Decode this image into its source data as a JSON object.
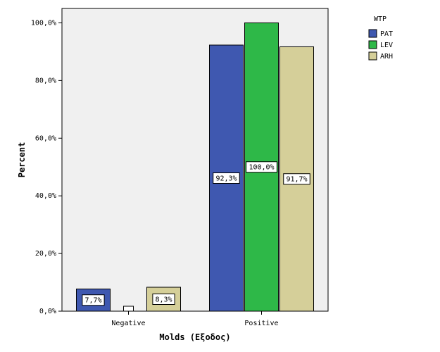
{
  "chart_data": {
    "type": "bar",
    "title": "",
    "xlabel": "Molds (Εξοδος)",
    "ylabel": "Percent",
    "categories": [
      "Negative",
      "Positive"
    ],
    "series": [
      {
        "name": "PAT",
        "values": [
          7.7,
          92.3
        ],
        "labels": [
          "7,7%",
          "92,3%"
        ],
        "color": "#3f58b0"
      },
      {
        "name": "LEV",
        "values": [
          0,
          100.0
        ],
        "labels": [
          "",
          "100,0%"
        ],
        "color": "#2eb848"
      },
      {
        "name": "ARH",
        "values": [
          8.3,
          91.7
        ],
        "labels": [
          "8,3%",
          "91,7%"
        ],
        "color": "#d5cf99"
      }
    ],
    "ylim": [
      0,
      105
    ],
    "yticks": [
      0,
      20,
      40,
      60,
      80,
      100
    ],
    "ytick_labels": [
      "0,0%",
      "20,0%",
      "40,0%",
      "60,0%",
      "80,0%",
      "100,0%"
    ],
    "legend": {
      "title": "WTP",
      "position": "right"
    },
    "plot_background": "#f0f0f0",
    "grid": false
  }
}
